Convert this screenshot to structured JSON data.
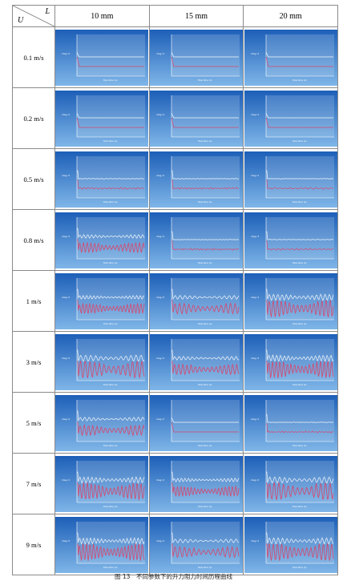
{
  "header": {
    "row_var": "U",
    "col_var": "L"
  },
  "columns": [
    "10 mm",
    "15 mm",
    "20 mm"
  ],
  "rows": [
    "0.1 m/s",
    "0.2 m/s",
    "0.5 m/s",
    "0.8 m/s",
    "1 m/s",
    "3 m/s",
    "5 m/s",
    "7 m/s",
    "9 m/s"
  ],
  "caption": "图 13　不同参数下的升力阻力时间历程曲线",
  "plot_text": {
    "xlabel": "flow time (s)",
    "ylabel": "drag ct"
  },
  "colors": {
    "panel_top": "#1d5fb8",
    "panel_bottom": "#7fb6e8",
    "plot_bg": "#e9f3fb",
    "drag": "#f2f7fc",
    "lift": "#d8456b"
  },
  "chart_data": {
    "type": "line",
    "title": "",
    "description_of_series": "Each panel shows two traces: a light drag curve and a red lift curve versus flow time; amplitude regime per cell (0 = flat, 1 = small ripple, 2 = moderate oscillation, 3 = strong oscillation)",
    "x": [
      "10 mm",
      "15 mm",
      "20 mm"
    ],
    "series": [
      {
        "name": "0.1 m/s",
        "values": [
          0,
          0,
          0
        ]
      },
      {
        "name": "0.2 m/s",
        "values": [
          0,
          0,
          0
        ]
      },
      {
        "name": "0.5 m/s",
        "values": [
          1,
          1,
          1
        ]
      },
      {
        "name": "0.8 m/s",
        "values": [
          2,
          1,
          1
        ]
      },
      {
        "name": "1 m/s",
        "values": [
          2,
          2,
          3
        ]
      },
      {
        "name": "3 m/s",
        "values": [
          3,
          2,
          3
        ]
      },
      {
        "name": "5 m/s",
        "values": [
          2,
          0,
          1
        ]
      },
      {
        "name": "7 m/s",
        "values": [
          3,
          2,
          3
        ]
      },
      {
        "name": "9 m/s",
        "values": [
          3,
          2,
          3
        ]
      }
    ]
  }
}
